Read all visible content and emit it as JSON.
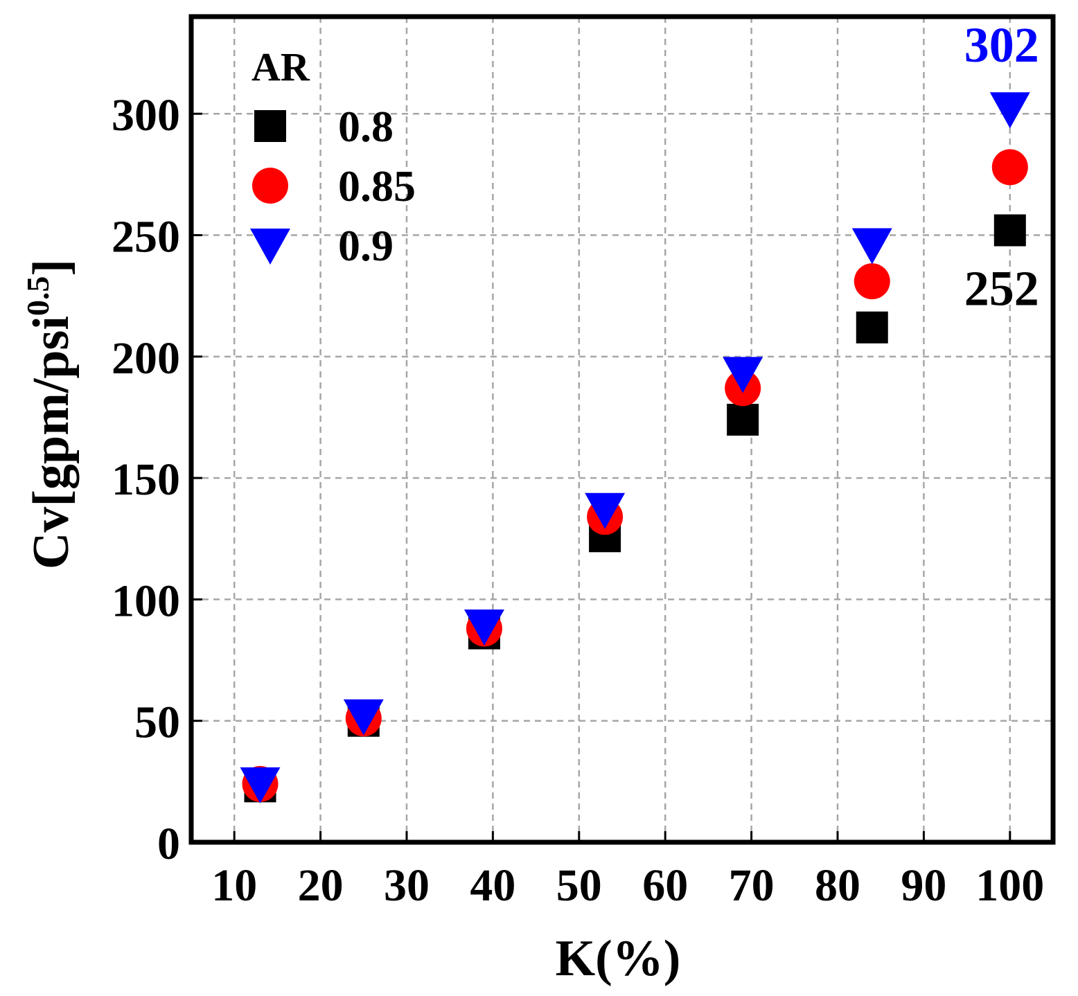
{
  "chart_data": {
    "type": "scatter",
    "xlabel": "K(%)",
    "ylabel": "Cv[gpm/psi",
    "ylabel_sup": "0.5",
    "ylabel_end": "]",
    "xlim": [
      5,
      105
    ],
    "ylim": [
      0,
      340
    ],
    "xticks": [
      10,
      20,
      30,
      40,
      50,
      60,
      70,
      80,
      90,
      100
    ],
    "yticks": [
      0,
      50,
      100,
      150,
      200,
      250,
      300
    ],
    "grid": true,
    "legend": {
      "title": "AR",
      "position": "top-left"
    },
    "series": [
      {
        "name": "0.8",
        "marker": "square",
        "color": "#000000",
        "x": [
          13,
          25,
          39,
          53,
          69,
          84,
          100
        ],
        "y": [
          23,
          50,
          86,
          126,
          174,
          212,
          252
        ]
      },
      {
        "name": "0.85",
        "marker": "circle",
        "color": "#ff0000",
        "x": [
          13,
          25,
          39,
          53,
          69,
          84,
          100
        ],
        "y": [
          24,
          51,
          88,
          134,
          187,
          231,
          278
        ]
      },
      {
        "name": "0.9",
        "marker": "triangle-down",
        "color": "#0000ff",
        "x": [
          13,
          25,
          39,
          53,
          69,
          84,
          100
        ],
        "y": [
          24,
          52,
          89,
          137,
          193,
          246,
          302
        ]
      }
    ],
    "annotations": [
      {
        "text": "302",
        "color": "#0000ff",
        "x": 100,
        "y": 302
      },
      {
        "text": "252",
        "color": "#000000",
        "x": 100,
        "y": 252
      }
    ]
  }
}
